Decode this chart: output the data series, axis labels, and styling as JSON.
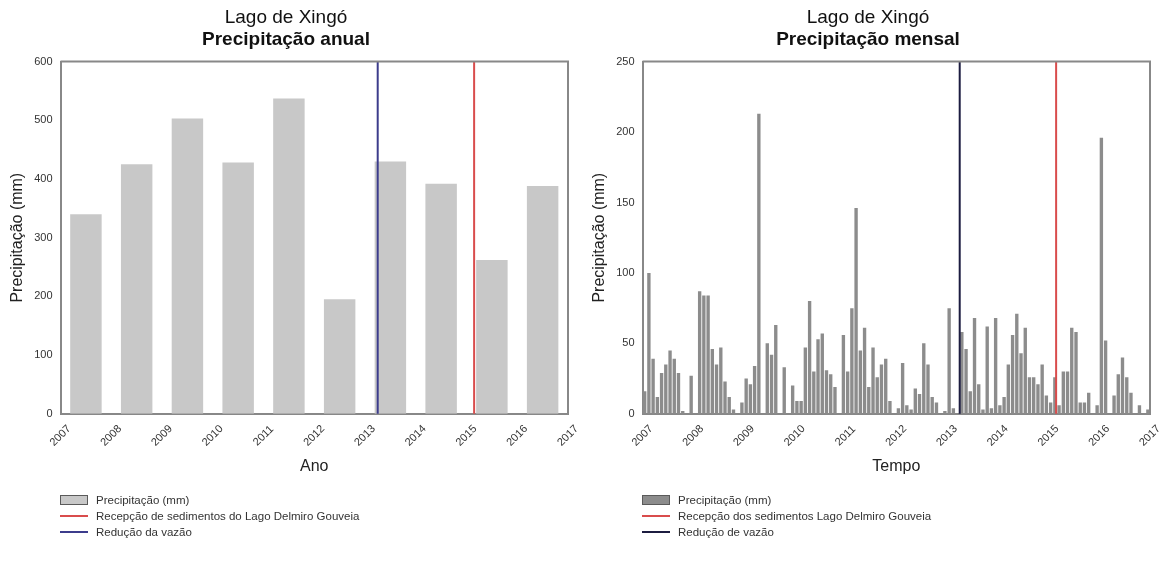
{
  "chart_data": [
    {
      "type": "bar",
      "title": "Lago de Xingó",
      "subtitle": "Precipitação anual",
      "xlabel": "Ano",
      "ylabel": "Precipitação (mm)",
      "x": [
        2007.5,
        2008.5,
        2009.5,
        2010.5,
        2011.5,
        2012.5,
        2013.5,
        2014.5,
        2015.5,
        2016.5
      ],
      "series": [
        {
          "name": "Precipitação (mm)",
          "color": "#c8c8c8",
          "values": [
            340,
            425,
            503,
            428,
            537,
            195,
            430,
            392,
            262,
            388
          ]
        }
      ],
      "xlim": [
        2007,
        2017
      ],
      "xticks": [
        2007,
        2008,
        2009,
        2010,
        2011,
        2012,
        2013,
        2014,
        2015,
        2016,
        2017
      ],
      "ylim": [
        0,
        600
      ],
      "yticks": [
        0,
        100,
        200,
        300,
        400,
        500,
        600
      ],
      "ref_lines": [
        {
          "axis": "x",
          "value": 2015.15,
          "label": "Recepção de sedimentos do Lago Delmiro Gouveia",
          "color": "#d94c4c"
        },
        {
          "axis": "x",
          "value": 2013.25,
          "label": "Redução da vazão",
          "color": "#3c3c8c"
        }
      ],
      "legend": "bottom"
    },
    {
      "type": "bar",
      "title": "Lago de Xingó",
      "subtitle": "Precipitação mensal",
      "xlabel": "Tempo",
      "ylabel": "Precipitação (mm)",
      "x": [
        2007.042,
        2007.125,
        2007.208,
        2007.292,
        2007.375,
        2007.458,
        2007.542,
        2007.625,
        2007.708,
        2007.792,
        2007.875,
        2007.958,
        2008.042,
        2008.125,
        2008.208,
        2008.292,
        2008.375,
        2008.458,
        2008.542,
        2008.625,
        2008.708,
        2008.792,
        2008.875,
        2008.958,
        2009.042,
        2009.125,
        2009.208,
        2009.292,
        2009.375,
        2009.458,
        2009.542,
        2009.625,
        2009.708,
        2009.792,
        2009.875,
        2009.958,
        2010.042,
        2010.125,
        2010.208,
        2010.292,
        2010.375,
        2010.458,
        2010.542,
        2010.625,
        2010.708,
        2010.792,
        2010.875,
        2010.958,
        2011.042,
        2011.125,
        2011.208,
        2011.292,
        2011.375,
        2011.458,
        2011.542,
        2011.625,
        2011.708,
        2011.792,
        2011.875,
        2011.958,
        2012.042,
        2012.125,
        2012.208,
        2012.292,
        2012.375,
        2012.458,
        2012.542,
        2012.625,
        2012.708,
        2012.792,
        2012.875,
        2012.958,
        2013.042,
        2013.125,
        2013.208,
        2013.292,
        2013.375,
        2013.458,
        2013.542,
        2013.625,
        2013.708,
        2013.792,
        2013.875,
        2013.958,
        2014.042,
        2014.125,
        2014.208,
        2014.292,
        2014.375,
        2014.458,
        2014.542,
        2014.625,
        2014.708,
        2014.792,
        2014.875,
        2014.958,
        2015.042,
        2015.125,
        2015.208,
        2015.292,
        2015.375,
        2015.458,
        2015.542,
        2015.625,
        2015.708,
        2015.792,
        2015.875,
        2015.958,
        2016.042,
        2016.125,
        2016.208,
        2016.292,
        2016.375,
        2016.458,
        2016.542,
        2016.625,
        2016.708,
        2016.792,
        2016.875,
        2016.958
      ],
      "series": [
        {
          "name": "Precipitação (mm)",
          "color": "#8c8c8c",
          "values": [
            16,
            100,
            39,
            12,
            29,
            35,
            45,
            39,
            29,
            2,
            null,
            27,
            0,
            87,
            84,
            84,
            46,
            35,
            47,
            23,
            12,
            3,
            0,
            8,
            25,
            21,
            34,
            213,
            0,
            50,
            42,
            63,
            0,
            33,
            0,
            20,
            9,
            9,
            47,
            80,
            30,
            53,
            57,
            31,
            28,
            19,
            0,
            56,
            30,
            75,
            146,
            45,
            61,
            19,
            47,
            26,
            35,
            39,
            9,
            0,
            4,
            36,
            6,
            3,
            18,
            14,
            50,
            35,
            12,
            8,
            0,
            2,
            75,
            4,
            null,
            58,
            46,
            16,
            68,
            21,
            3,
            62,
            4,
            68,
            6,
            12,
            35,
            56,
            71,
            43,
            61,
            26,
            26,
            21,
            35,
            13,
            8,
            26,
            6,
            30,
            30,
            61,
            58,
            8,
            8,
            15,
            0,
            6,
            196,
            52,
            null,
            13,
            28,
            40,
            26,
            15,
            null,
            6,
            0,
            3
          ]
        }
      ],
      "xlim": [
        2007,
        2017
      ],
      "xticks": [
        2007,
        2008,
        2009,
        2010,
        2011,
        2012,
        2013,
        2014,
        2015,
        2016,
        2017
      ],
      "ylim": [
        0,
        250
      ],
      "yticks": [
        0,
        50,
        100,
        150,
        200,
        250
      ],
      "ref_lines": [
        {
          "axis": "x",
          "value": 2015.15,
          "label": "Recepção dos sedimentos Lago Delmiro Gouveia",
          "color": "#d94c4c"
        },
        {
          "axis": "x",
          "value": 2013.25,
          "label": "Redução de vazão",
          "color": "#1c1c40"
        }
      ],
      "legend": "bottom"
    }
  ]
}
